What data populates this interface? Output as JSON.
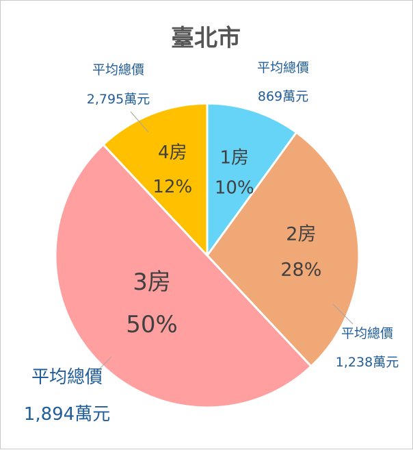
{
  "chart_data": {
    "type": "pie",
    "title": "臺北市",
    "slices": [
      {
        "category": "1房",
        "percent": 10,
        "percent_label": "10%",
        "price_caption": "平均總價",
        "price_label": "869萬元",
        "color": "#66d4f7"
      },
      {
        "category": "2房",
        "percent": 28,
        "percent_label": "28%",
        "price_caption": "平均總價",
        "price_label": "1,238萬元",
        "color": "#f0a877"
      },
      {
        "category": "3房",
        "percent": 50,
        "percent_label": "50%",
        "price_caption": "平均總價",
        "price_label": "1,894萬元",
        "color": "#ff9f9f"
      },
      {
        "category": "4房",
        "percent": 12,
        "percent_label": "12%",
        "price_caption": "平均總價",
        "price_label": "2,795萬元",
        "color": "#ffc000"
      }
    ]
  }
}
